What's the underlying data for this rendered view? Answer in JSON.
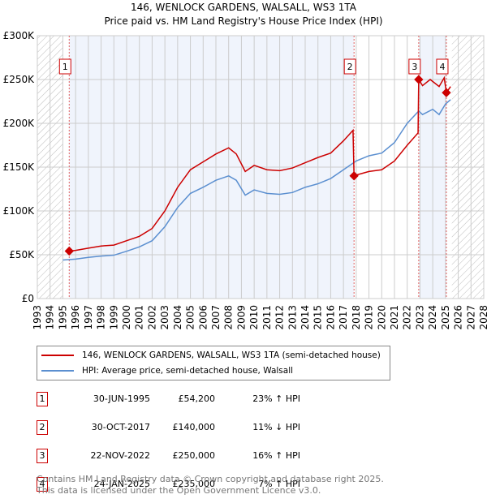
{
  "chart_data": {
    "type": "line",
    "title": "146, WENLOCK GARDENS, WALSALL, WS3 1TA",
    "subtitle": "Price paid vs. HM Land Registry's House Price Index (HPI)",
    "xlim": [
      1993,
      2028
    ],
    "ylim": [
      0,
      300000
    ],
    "x_ticks": [
      "1993",
      "1994",
      "1995",
      "1996",
      "1997",
      "1998",
      "1999",
      "2000",
      "2001",
      "2002",
      "2003",
      "2004",
      "2005",
      "2006",
      "2007",
      "2008",
      "2009",
      "2010",
      "2011",
      "2012",
      "2013",
      "2014",
      "2015",
      "2016",
      "2017",
      "2018",
      "2019",
      "2020",
      "2021",
      "2022",
      "2023",
      "2024",
      "2025",
      "2026",
      "2027",
      "2028"
    ],
    "y_ticks": [
      {
        "v": 0,
        "l": "£0"
      },
      {
        "v": 50000,
        "l": "£50K"
      },
      {
        "v": 100000,
        "l": "£100K"
      },
      {
        "v": 150000,
        "l": "£150K"
      },
      {
        "v": 200000,
        "l": "£200K"
      },
      {
        "v": 250000,
        "l": "£250K"
      },
      {
        "v": 300000,
        "l": "£300K"
      }
    ],
    "grid": true,
    "hatched_ranges": [
      [
        1993,
        1995
      ],
      [
        2025.5,
        2028
      ]
    ],
    "shaded_ranges": [
      [
        1995.5,
        2017.83
      ],
      [
        2022.9,
        2025.07
      ]
    ],
    "series": [
      {
        "name": "146, WENLOCK GARDENS, WALSALL, WS3 1TA (semi-detached house)",
        "color": "#cc0000",
        "x": [
          1995.5,
          1996,
          1997,
          1998,
          1999,
          2000,
          2001,
          2002,
          2003,
          2004,
          2005,
          2006,
          2007,
          2008,
          2008.6,
          2009.3,
          2010,
          2011,
          2012,
          2013,
          2014,
          2015,
          2016,
          2017,
          2017.75,
          2017.83,
          2018,
          2019,
          2020,
          2021,
          2022,
          2022.85,
          2022.9,
          2023.2,
          2023.8,
          2024.5,
          2024.9,
          2025.07,
          2025.4
        ],
        "y": [
          54200,
          55000,
          57500,
          60000,
          61000,
          66000,
          71000,
          80000,
          100000,
          127000,
          147000,
          156000,
          165000,
          172000,
          165000,
          145000,
          152000,
          147000,
          146000,
          149000,
          155000,
          161000,
          166000,
          180000,
          192000,
          140000,
          141000,
          145000,
          147000,
          157000,
          175000,
          189000,
          250000,
          243000,
          250000,
          242000,
          252000,
          235000,
          242000
        ]
      },
      {
        "name": "HPI: Average price, semi-detached house, Walsall",
        "color": "#5b8fd0",
        "x": [
          1995,
          1996,
          1997,
          1998,
          1999,
          2000,
          2001,
          2002,
          2003,
          2004,
          2005,
          2006,
          2007,
          2008,
          2008.6,
          2009.3,
          2010,
          2011,
          2012,
          2013,
          2014,
          2015,
          2016,
          2017,
          2018,
          2019,
          2020,
          2021,
          2022,
          2022.9,
          2023.2,
          2024,
          2024.5,
          2025,
          2025.4
        ],
        "y": [
          44000,
          45000,
          47000,
          48500,
          49500,
          54000,
          59000,
          66000,
          82000,
          104000,
          120000,
          127000,
          135000,
          140000,
          135000,
          118000,
          124000,
          120000,
          119000,
          121000,
          127000,
          131000,
          137000,
          147000,
          157000,
          163000,
          166000,
          178000,
          200000,
          214000,
          210000,
          216000,
          210000,
          222000,
          227000
        ]
      }
    ],
    "legend_placement": "below",
    "sales": [
      {
        "n": "1",
        "date": "30-JUN-1995",
        "price": "£54,200",
        "rel": "23% ↑ HPI",
        "x": 1995.5,
        "y": 54200
      },
      {
        "n": "2",
        "date": "30-OCT-2017",
        "price": "£140,000",
        "rel": "11% ↓ HPI",
        "x": 2017.83,
        "y": 140000
      },
      {
        "n": "3",
        "date": "22-NOV-2022",
        "price": "£250,000",
        "rel": "16% ↑ HPI",
        "x": 2022.9,
        "y": 250000
      },
      {
        "n": "4",
        "date": "24-JAN-2025",
        "price": "£235,000",
        "rel": "7% ↑ HPI",
        "x": 2025.07,
        "y": 235000
      }
    ]
  },
  "footer": {
    "line1": "Contains HM Land Registry data © Crown copyright and database right 2025.",
    "line2": "This data is licensed under the Open Government Licence v3.0."
  }
}
